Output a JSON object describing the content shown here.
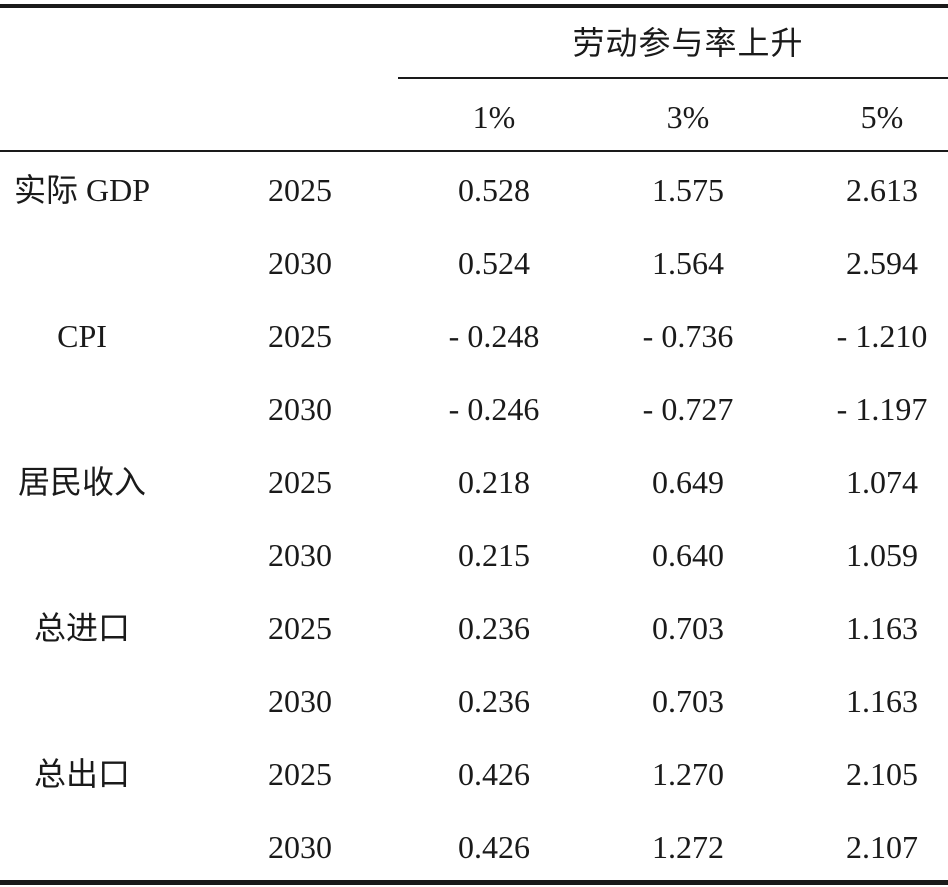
{
  "table": {
    "span_header": "劳动参与率上升",
    "columns": [
      "1%",
      "3%",
      "5%"
    ],
    "rows": [
      {
        "indicator": "实际 GDP",
        "year": "2025",
        "values": [
          "0.528",
          "1.575",
          "2.613"
        ]
      },
      {
        "indicator": "",
        "year": "2030",
        "values": [
          "0.524",
          "1.564",
          "2.594"
        ]
      },
      {
        "indicator": "CPI",
        "year": "2025",
        "values": [
          "- 0.248",
          "- 0.736",
          "- 1.210"
        ]
      },
      {
        "indicator": "",
        "year": "2030",
        "values": [
          "- 0.246",
          "- 0.727",
          "- 1.197"
        ]
      },
      {
        "indicator": "居民收入",
        "year": "2025",
        "values": [
          "0.218",
          "0.649",
          "1.074"
        ]
      },
      {
        "indicator": "",
        "year": "2030",
        "values": [
          "0.215",
          "0.640",
          "1.059"
        ]
      },
      {
        "indicator": "总进口",
        "year": "2025",
        "values": [
          "0.236",
          "0.703",
          "1.163"
        ]
      },
      {
        "indicator": "",
        "year": "2030",
        "values": [
          "0.236",
          "0.703",
          "1.163"
        ]
      },
      {
        "indicator": "总出口",
        "year": "2025",
        "values": [
          "0.426",
          "1.270",
          "2.105"
        ]
      },
      {
        "indicator": "",
        "year": "2030",
        "values": [
          "0.426",
          "1.272",
          "2.107"
        ]
      }
    ]
  }
}
